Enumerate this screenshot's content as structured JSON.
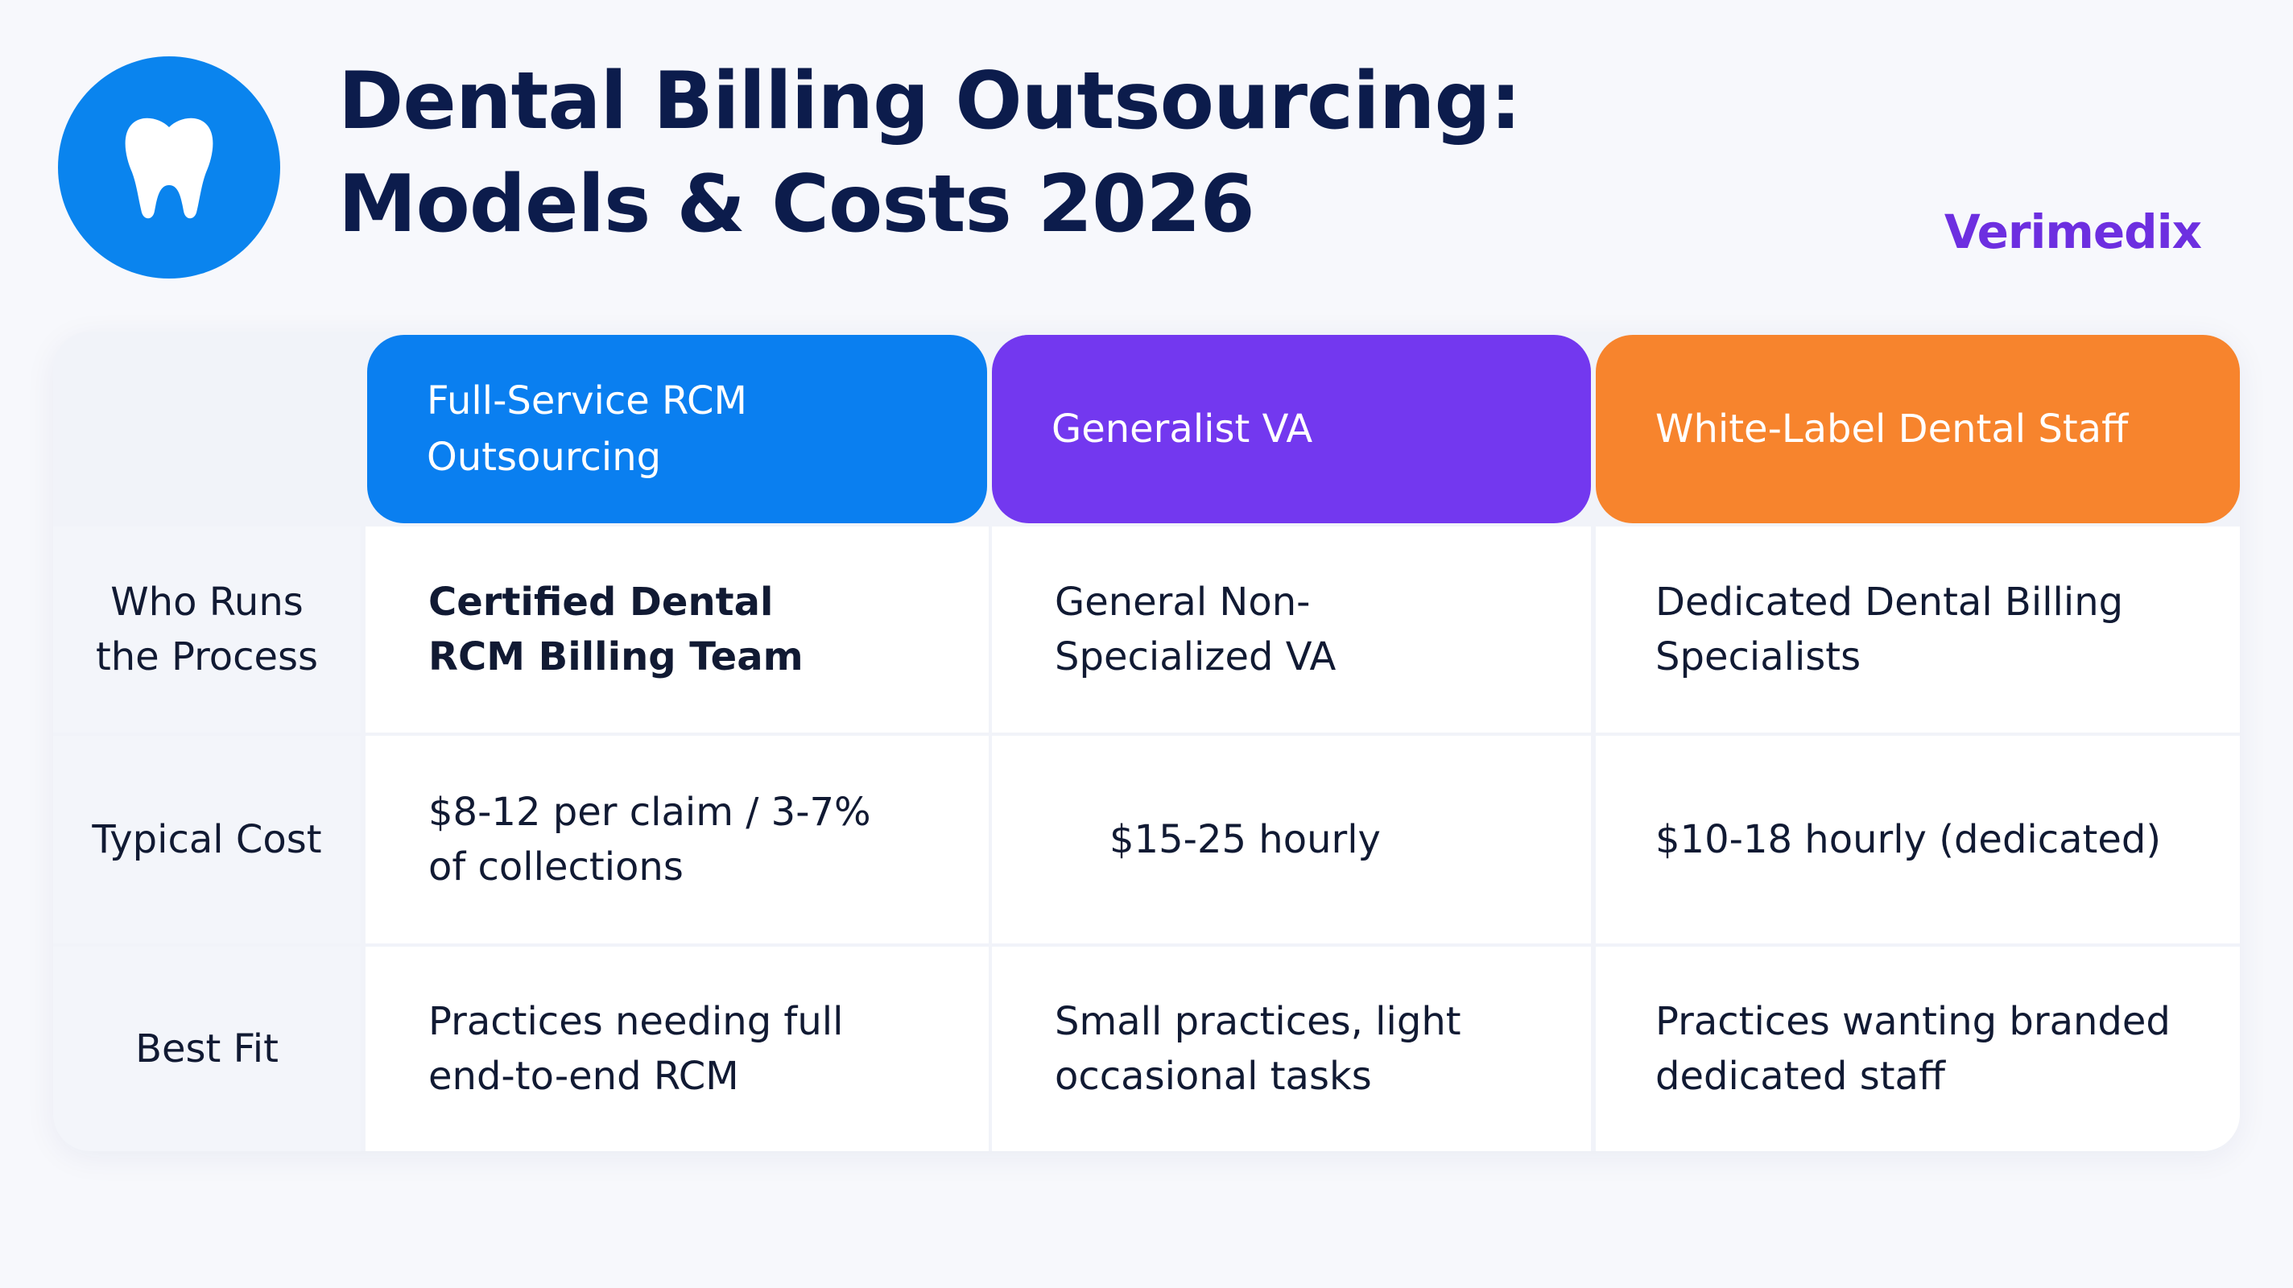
{
  "header": {
    "title_line1": "Dental Billing Outsourcing:",
    "title_line2": "Models & Costs 2026",
    "brand": "Verimedix",
    "logo_icon": "tooth-icon",
    "logo_color": "#0a84ee"
  },
  "table": {
    "columns": [
      {
        "label": "Full-Service RCM Outsourcing",
        "color": "#0a7ff0"
      },
      {
        "label": "Generalist VA",
        "color": "#7338ef"
      },
      {
        "label": "White-Label Dental Staff",
        "color": "#f7842d"
      }
    ],
    "rows": [
      {
        "label": "Who Runs the Process",
        "cells": [
          "Certified Dental RCM Billing Team",
          "General Non-Specialized VA",
          "Dedicated Dental Billing Specialists"
        ]
      },
      {
        "label": "Typical Cost",
        "cells": [
          "$8-12 per claim / 3-7% of collections",
          "$15-25 hourly",
          "$10-18 hourly (dedicated)"
        ]
      },
      {
        "label": "Best Fit",
        "cells": [
          "Practices needing full end-to-end RCM",
          "Small practices, light occasional tasks",
          "Practices wanting branded dedicated staff"
        ]
      }
    ]
  }
}
